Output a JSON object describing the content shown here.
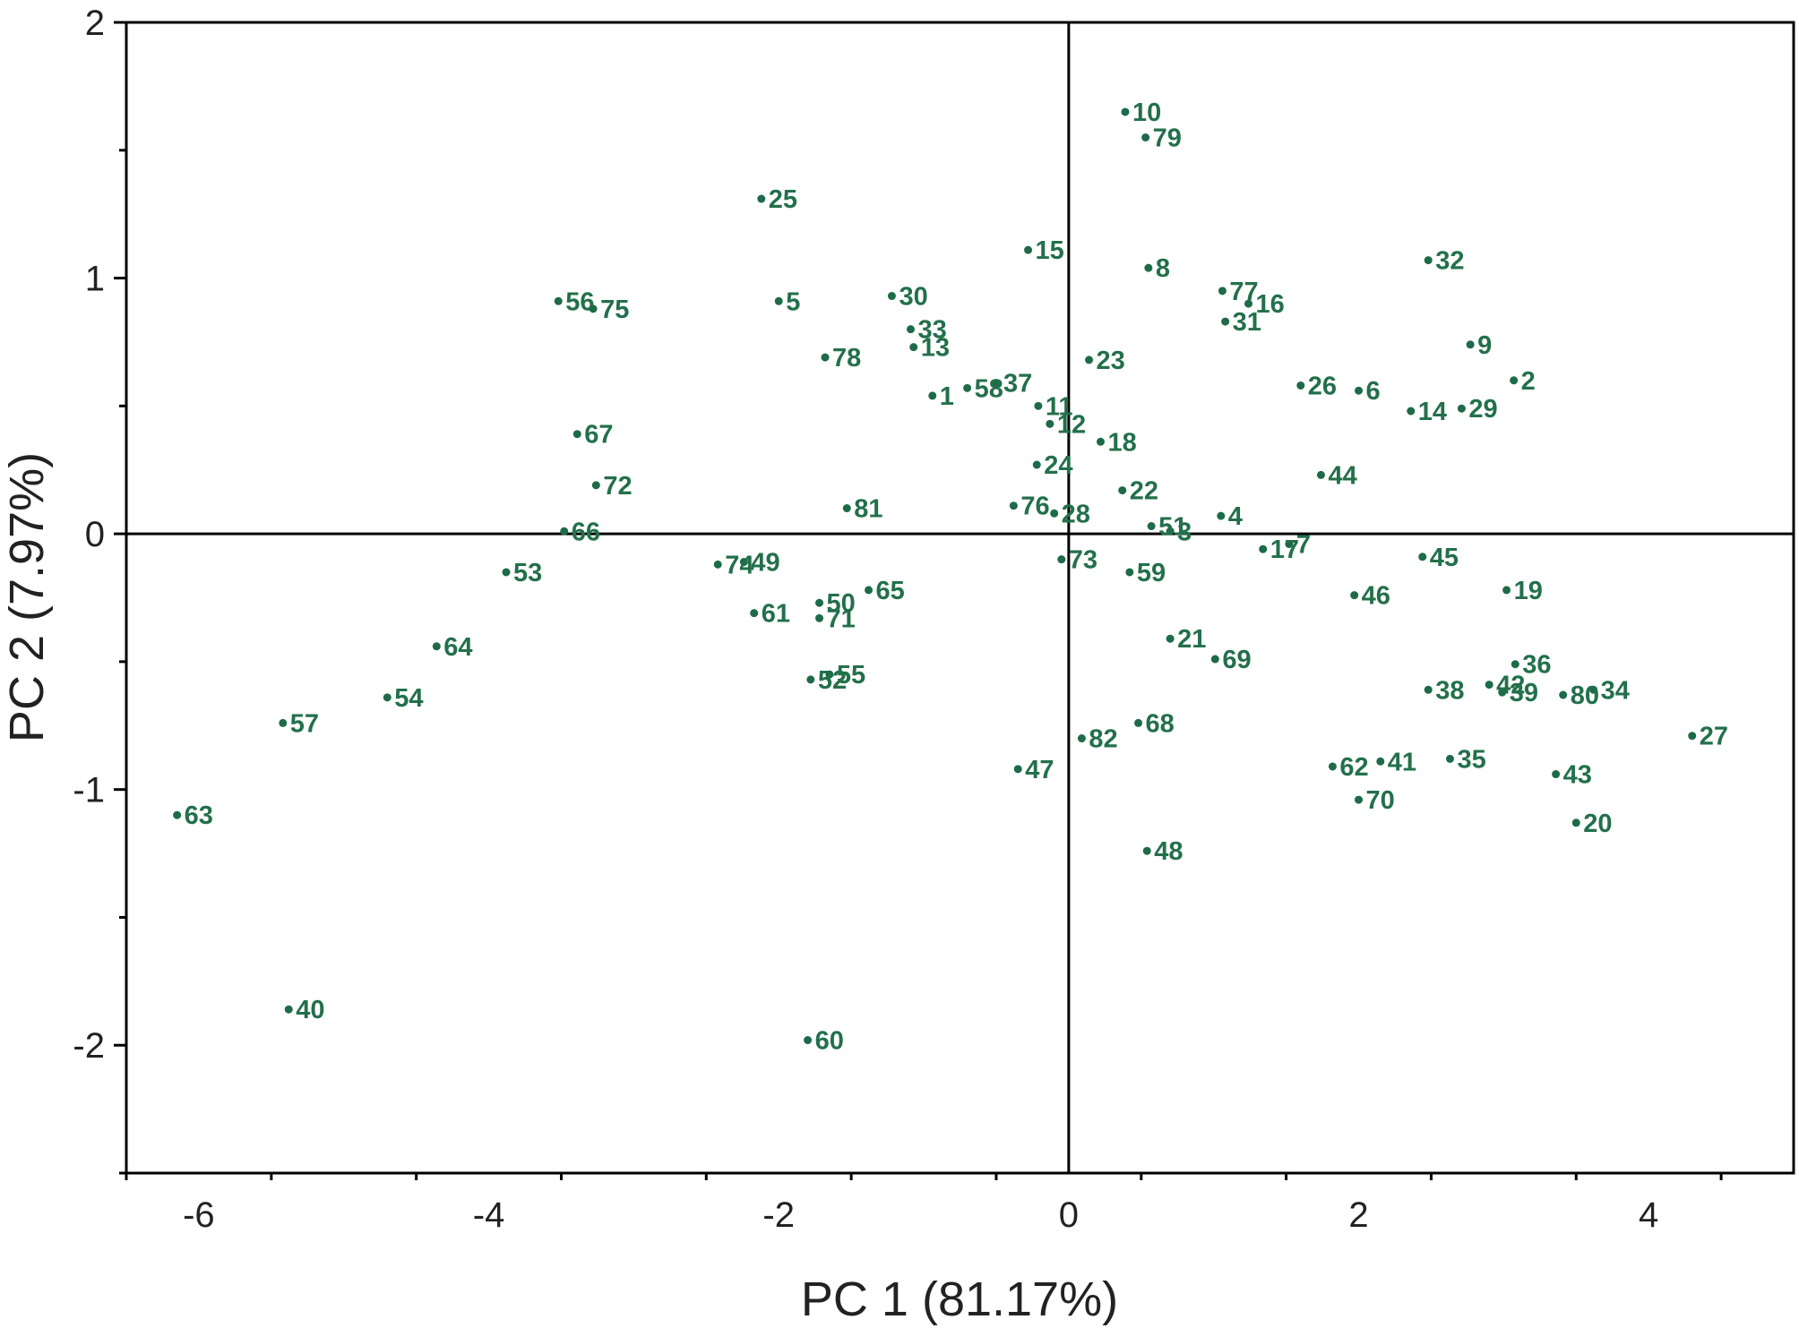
{
  "chart_data": {
    "type": "scatter",
    "xlabel": "PC 1 (81.17%)",
    "ylabel": "PC 2 (7.97%)",
    "xlim": [
      -6.5,
      5
    ],
    "ylim": [
      -2.5,
      2
    ],
    "xticks": [
      -6,
      -4,
      -2,
      0,
      2,
      4
    ],
    "yticks": [
      -2,
      -1,
      0,
      1,
      2
    ],
    "xticklabels": [
      "-6",
      "-4",
      "-2",
      "0",
      "2",
      "4"
    ],
    "yticklabels": [
      "-2",
      "-1",
      "0",
      "1",
      "2"
    ],
    "reference_lines": {
      "x": 0,
      "y": 0
    },
    "grid": false,
    "legend": "none",
    "point_color": "#1d6b48",
    "label_color": "#23704b",
    "points": [
      {
        "label": "1",
        "x": -0.94,
        "y": 0.54
      },
      {
        "label": "2",
        "x": 3.07,
        "y": 0.6
      },
      {
        "label": "3",
        "x": 0.7,
        "y": 0.01
      },
      {
        "label": "4",
        "x": 1.05,
        "y": 0.07
      },
      {
        "label": "5",
        "x": -2.0,
        "y": 0.91
      },
      {
        "label": "6",
        "x": 2.0,
        "y": 0.56
      },
      {
        "label": "7",
        "x": 1.52,
        "y": -0.04
      },
      {
        "label": "8",
        "x": 0.55,
        "y": 1.04
      },
      {
        "label": "9",
        "x": 2.77,
        "y": 0.74
      },
      {
        "label": "10",
        "x": 0.39,
        "y": 1.65
      },
      {
        "label": "11",
        "x": -0.21,
        "y": 0.5
      },
      {
        "label": "12",
        "x": -0.13,
        "y": 0.43
      },
      {
        "label": "13",
        "x": -1.07,
        "y": 0.73
      },
      {
        "label": "14",
        "x": 2.36,
        "y": 0.48
      },
      {
        "label": "15",
        "x": -0.28,
        "y": 1.11
      },
      {
        "label": "16",
        "x": 1.24,
        "y": 0.9
      },
      {
        "label": "17",
        "x": 1.34,
        "y": -0.06
      },
      {
        "label": "18",
        "x": 0.22,
        "y": 0.36
      },
      {
        "label": "19",
        "x": 3.02,
        "y": -0.22
      },
      {
        "label": "20",
        "x": 3.5,
        "y": -1.13
      },
      {
        "label": "21",
        "x": 0.7,
        "y": -0.41
      },
      {
        "label": "22",
        "x": 0.37,
        "y": 0.17
      },
      {
        "label": "23",
        "x": 0.14,
        "y": 0.68
      },
      {
        "label": "24",
        "x": -0.22,
        "y": 0.27
      },
      {
        "label": "25",
        "x": -2.12,
        "y": 1.31
      },
      {
        "label": "26",
        "x": 1.6,
        "y": 0.58
      },
      {
        "label": "27",
        "x": 4.3,
        "y": -0.79
      },
      {
        "label": "28",
        "x": -0.1,
        "y": 0.08
      },
      {
        "label": "29",
        "x": 2.71,
        "y": 0.49
      },
      {
        "label": "30",
        "x": -1.22,
        "y": 0.93
      },
      {
        "label": "31",
        "x": 1.08,
        "y": 0.83
      },
      {
        "label": "32",
        "x": 2.48,
        "y": 1.07
      },
      {
        "label": "33",
        "x": -1.09,
        "y": 0.8
      },
      {
        "label": "34",
        "x": 3.62,
        "y": -0.61
      },
      {
        "label": "35",
        "x": 2.63,
        "y": -0.88
      },
      {
        "label": "36",
        "x": 3.08,
        "y": -0.51
      },
      {
        "label": "37",
        "x": -0.5,
        "y": 0.59
      },
      {
        "label": "38",
        "x": 2.48,
        "y": -0.61
      },
      {
        "label": "39",
        "x": 2.99,
        "y": -0.62
      },
      {
        "label": "40",
        "x": -5.38,
        "y": -1.86
      },
      {
        "label": "41",
        "x": 2.15,
        "y": -0.89
      },
      {
        "label": "42",
        "x": 2.9,
        "y": -0.59
      },
      {
        "label": "43",
        "x": 3.36,
        "y": -0.94
      },
      {
        "label": "44",
        "x": 1.74,
        "y": 0.23
      },
      {
        "label": "45",
        "x": 2.44,
        "y": -0.09
      },
      {
        "label": "46",
        "x": 1.97,
        "y": -0.24
      },
      {
        "label": "47",
        "x": -0.35,
        "y": -0.92
      },
      {
        "label": "48",
        "x": 0.54,
        "y": -1.24
      },
      {
        "label": "49",
        "x": -2.24,
        "y": -0.11
      },
      {
        "label": "50",
        "x": -1.72,
        "y": -0.27
      },
      {
        "label": "51",
        "x": 0.57,
        "y": 0.03
      },
      {
        "label": "52",
        "x": -1.78,
        "y": -0.57
      },
      {
        "label": "53",
        "x": -3.88,
        "y": -0.15
      },
      {
        "label": "54",
        "x": -4.7,
        "y": -0.64
      },
      {
        "label": "55",
        "x": -1.65,
        "y": -0.55
      },
      {
        "label": "56",
        "x": -3.52,
        "y": 0.91
      },
      {
        "label": "57",
        "x": -5.42,
        "y": -0.74
      },
      {
        "label": "58",
        "x": -0.7,
        "y": 0.57
      },
      {
        "label": "59",
        "x": 0.42,
        "y": -0.15
      },
      {
        "label": "60",
        "x": -1.8,
        "y": -1.98
      },
      {
        "label": "61",
        "x": -2.17,
        "y": -0.31
      },
      {
        "label": "62",
        "x": 1.82,
        "y": -0.91
      },
      {
        "label": "63",
        "x": -6.15,
        "y": -1.1
      },
      {
        "label": "64",
        "x": -4.36,
        "y": -0.44
      },
      {
        "label": "65",
        "x": -1.38,
        "y": -0.22
      },
      {
        "label": "66",
        "x": -3.48,
        "y": 0.01
      },
      {
        "label": "67",
        "x": -3.39,
        "y": 0.39
      },
      {
        "label": "68",
        "x": 0.48,
        "y": -0.74
      },
      {
        "label": "69",
        "x": 1.01,
        "y": -0.49
      },
      {
        "label": "70",
        "x": 2.0,
        "y": -1.04
      },
      {
        "label": "71",
        "x": -1.72,
        "y": -0.33
      },
      {
        "label": "72",
        "x": -3.26,
        "y": 0.19
      },
      {
        "label": "73",
        "x": -0.05,
        "y": -0.1
      },
      {
        "label": "74",
        "x": -2.42,
        "y": -0.12
      },
      {
        "label": "75",
        "x": -3.28,
        "y": 0.88
      },
      {
        "label": "76",
        "x": -0.38,
        "y": 0.11
      },
      {
        "label": "77",
        "x": 1.06,
        "y": 0.95
      },
      {
        "label": "78",
        "x": -1.68,
        "y": 0.69
      },
      {
        "label": "79",
        "x": 0.53,
        "y": 1.55
      },
      {
        "label": "80",
        "x": 3.41,
        "y": -0.63
      },
      {
        "label": "81",
        "x": -1.53,
        "y": 0.1
      },
      {
        "label": "82",
        "x": 0.09,
        "y": -0.8
      }
    ]
  }
}
